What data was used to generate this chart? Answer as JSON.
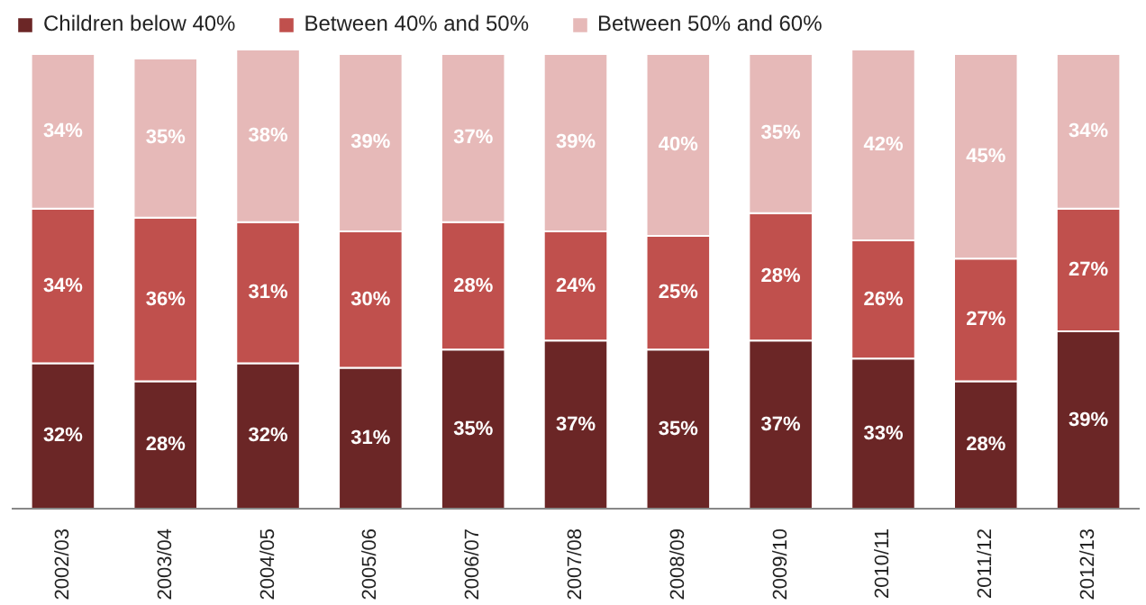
{
  "chart_data": {
    "type": "bar",
    "stacked": true,
    "categories": [
      "2002/03",
      "2003/04",
      "2004/05",
      "2005/06",
      "2006/07",
      "2007/08",
      "2008/09",
      "2009/10",
      "2010/11",
      "2011/12",
      "2012/13"
    ],
    "series": [
      {
        "name": "Children below 40%",
        "color": "#6b2626",
        "values": [
          32,
          28,
          32,
          31,
          35,
          37,
          35,
          37,
          33,
          28,
          39
        ],
        "value_labels": [
          "32%",
          "28%",
          "32%",
          "31%",
          "35%",
          "37%",
          "35%",
          "37%",
          "33%",
          "28%",
          "39%"
        ]
      },
      {
        "name": "Between 40% and 50%",
        "color": "#c0504d",
        "values": [
          34,
          36,
          31,
          30,
          28,
          24,
          25,
          28,
          26,
          27,
          27
        ],
        "value_labels": [
          "34%",
          "36%",
          "31%",
          "30%",
          "28%",
          "24%",
          "25%",
          "28%",
          "26%",
          "27%",
          "27%"
        ]
      },
      {
        "name": "Between 50% and 60%",
        "color": "#e6b9b8",
        "values": [
          34,
          35,
          38,
          39,
          37,
          39,
          40,
          35,
          42,
          45,
          34
        ],
        "value_labels": [
          "34%",
          "35%",
          "38%",
          "39%",
          "37%",
          "39%",
          "40%",
          "35%",
          "42%",
          "45%",
          "34%"
        ]
      }
    ],
    "legend": "top left",
    "tick_labels": "x"
  }
}
